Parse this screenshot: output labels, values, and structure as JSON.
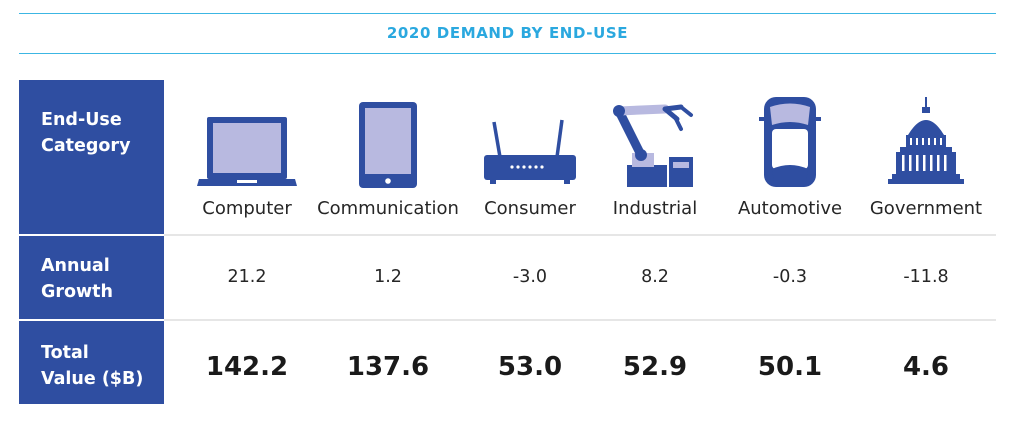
{
  "title": "2020 DEMAND BY END-USE",
  "row_headers": {
    "category": [
      "End-Use",
      "Category"
    ],
    "growth": [
      "Annual",
      "Growth"
    ],
    "total": [
      "Total",
      "Value ($B)"
    ]
  },
  "columns": [
    {
      "label": "Computer",
      "icon": "laptop-icon",
      "growth": "21.2",
      "total": "142.2"
    },
    {
      "label": "Communication",
      "icon": "tablet-icon",
      "growth": "1.2",
      "total": "137.6"
    },
    {
      "label": "Consumer",
      "icon": "router-icon",
      "growth": "-3.0",
      "total": "53.0"
    },
    {
      "label": "Industrial",
      "icon": "robot-arm-icon",
      "growth": "8.2",
      "total": "52.9"
    },
    {
      "label": "Automotive",
      "icon": "car-icon",
      "growth": "-0.3",
      "total": "50.1"
    },
    {
      "label": "Government",
      "icon": "capitol-icon",
      "growth": "-11.8",
      "total": "4.6"
    }
  ],
  "colors": {
    "header_bg": "#2f4ea1",
    "title": "#2aa8df",
    "icon_dark": "#2f4ea1",
    "icon_light": "#b8b9e0"
  }
}
